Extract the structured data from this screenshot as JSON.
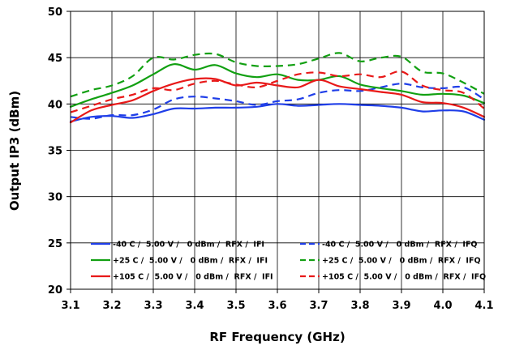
{
  "chart_data": {
    "type": "line",
    "title": "",
    "xlabel": "RF Frequency (GHz)",
    "ylabel": "Output IP3 (dBm)",
    "xlim": [
      3.1,
      4.1
    ],
    "ylim": [
      20,
      50
    ],
    "xticks": [
      "3.1",
      "3.2",
      "3.3",
      "3.4",
      "3.5",
      "3.6",
      "3.7",
      "3.8",
      "3.9",
      "4.0",
      "4.1"
    ],
    "yticks": [
      "20",
      "25",
      "30",
      "35",
      "40",
      "45",
      "50"
    ],
    "grid": true,
    "legend_position": "lower-center, inside plot",
    "x": [
      3.1,
      3.15,
      3.2,
      3.25,
      3.3,
      3.35,
      3.4,
      3.45,
      3.5,
      3.55,
      3.6,
      3.65,
      3.7,
      3.75,
      3.8,
      3.85,
      3.9,
      3.95,
      4.0,
      4.05,
      4.1
    ],
    "series": [
      {
        "name": "-40 C /  5.00 V /   0 dBm /  RFX /  IFI",
        "color": "#1f3ee8",
        "dash": false,
        "values": [
          38.1,
          38.6,
          38.7,
          38.5,
          38.9,
          39.5,
          39.5,
          39.6,
          39.6,
          39.7,
          40.0,
          39.8,
          39.9,
          40.0,
          39.9,
          39.8,
          39.6,
          39.2,
          39.3,
          39.2,
          38.3
        ]
      },
      {
        "name": "-40 C /  5.00 V /   0 dBm /  RFX /  IFQ",
        "color": "#1f3ee8",
        "dash": true,
        "values": [
          38.6,
          38.4,
          38.8,
          38.8,
          39.4,
          40.5,
          40.8,
          40.6,
          40.3,
          39.9,
          40.3,
          40.5,
          41.2,
          41.5,
          41.4,
          41.8,
          42.2,
          41.8,
          41.7,
          41.8,
          40.5
        ]
      },
      {
        "name": "+25 C /  5.00 V /   0 dBm /  RFX /  IFI",
        "color": "#12a012",
        "dash": false,
        "values": [
          39.7,
          40.5,
          41.2,
          42.0,
          43.2,
          44.3,
          43.7,
          44.2,
          43.3,
          42.9,
          43.2,
          42.6,
          42.6,
          43.0,
          42.1,
          41.7,
          41.4,
          41.0,
          41.1,
          40.9,
          40.1
        ]
      },
      {
        "name": "+25 C /  5.00 V /   0 dBm /  RFX /  IFQ",
        "color": "#12a012",
        "dash": true,
        "values": [
          40.8,
          41.5,
          42.0,
          43.0,
          45.0,
          44.8,
          45.3,
          45.4,
          44.5,
          44.1,
          44.1,
          44.3,
          44.9,
          45.5,
          44.6,
          45.0,
          45.1,
          43.5,
          43.3,
          42.3,
          41.1
        ]
      },
      {
        "name": "+105 C /  5.00 V /   0 dBm /  RFX /  IFI",
        "color": "#e81919",
        "dash": false,
        "values": [
          38.0,
          39.3,
          39.9,
          40.4,
          41.4,
          42.2,
          42.7,
          42.7,
          42.0,
          42.3,
          42.0,
          41.8,
          42.6,
          41.9,
          41.6,
          41.3,
          41.0,
          40.2,
          40.1,
          39.6,
          38.6
        ]
      },
      {
        "name": "+105 C /  5.00 V /   0 dBm /  RFX /  IFQ",
        "color": "#e81919",
        "dash": true,
        "values": [
          39.1,
          39.8,
          40.5,
          41.0,
          41.7,
          41.5,
          42.2,
          42.5,
          42.1,
          41.8,
          42.5,
          43.2,
          43.4,
          43.0,
          43.2,
          42.9,
          43.5,
          42.0,
          41.5,
          41.2,
          39.5
        ]
      }
    ]
  }
}
